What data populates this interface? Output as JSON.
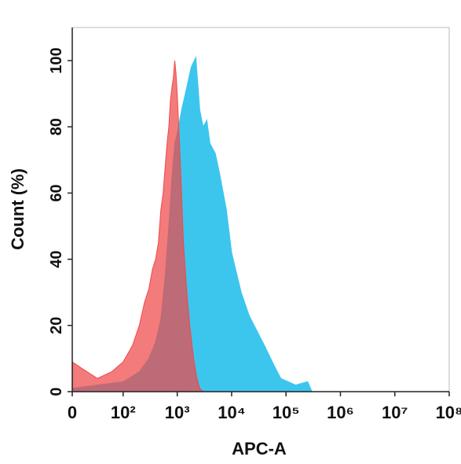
{
  "chart_data": {
    "type": "area",
    "xlabel": "APC-A",
    "ylabel": "Count  (%)",
    "xscale": "biexponential",
    "xlim": [
      0,
      100000000
    ],
    "ylim": [
      0,
      110
    ],
    "xticks": [
      0,
      {
        "value": 100,
        "label": "10²"
      },
      {
        "value": 1000,
        "label": "10³"
      },
      {
        "value": 10000,
        "label": "10⁴"
      },
      {
        "value": 100000,
        "label": "10⁵"
      },
      {
        "value": 1000000,
        "label": "10⁶"
      },
      {
        "value": 10000000,
        "label": "10⁷"
      },
      {
        "value": 100000000,
        "label": "10⁸"
      }
    ],
    "yticks": [
      0,
      20,
      40,
      60,
      80,
      100
    ],
    "series": [
      {
        "color": "#3cc6ee",
        "x": [
          0,
          30,
          100,
          200,
          300,
          400,
          500,
          600,
          700,
          800,
          900,
          1000,
          1200,
          1500,
          1800,
          2200,
          2600,
          3000,
          3500,
          4000,
          5000,
          6000,
          8000,
          10000,
          15000,
          21000,
          30000,
          40000,
          60000,
          80000,
          150000,
          250000,
          300000
        ],
        "values": [
          1,
          2,
          3,
          6,
          10,
          15,
          22,
          35,
          50,
          65,
          75,
          78,
          85,
          92,
          98,
          101,
          85,
          80,
          82,
          75,
          72,
          66,
          55,
          42,
          30,
          23,
          18,
          14,
          8,
          4,
          2,
          3,
          0
        ]
      },
      {
        "color": "#f04848",
        "x": [
          0,
          10,
          30,
          60,
          100,
          150,
          200,
          250,
          300,
          350,
          400,
          450,
          500,
          550,
          600,
          650,
          700,
          750,
          800,
          850,
          900,
          950,
          1000,
          1100,
          1200,
          1300,
          1500,
          1700,
          2000,
          2300,
          2600,
          3000
        ],
        "values": [
          9,
          7,
          4,
          6,
          9,
          14,
          20,
          27,
          31,
          37,
          40,
          45,
          55,
          60,
          68,
          75,
          80,
          88,
          92,
          95,
          100,
          96,
          90,
          75,
          60,
          45,
          30,
          20,
          10,
          4,
          1,
          0
        ]
      }
    ]
  }
}
